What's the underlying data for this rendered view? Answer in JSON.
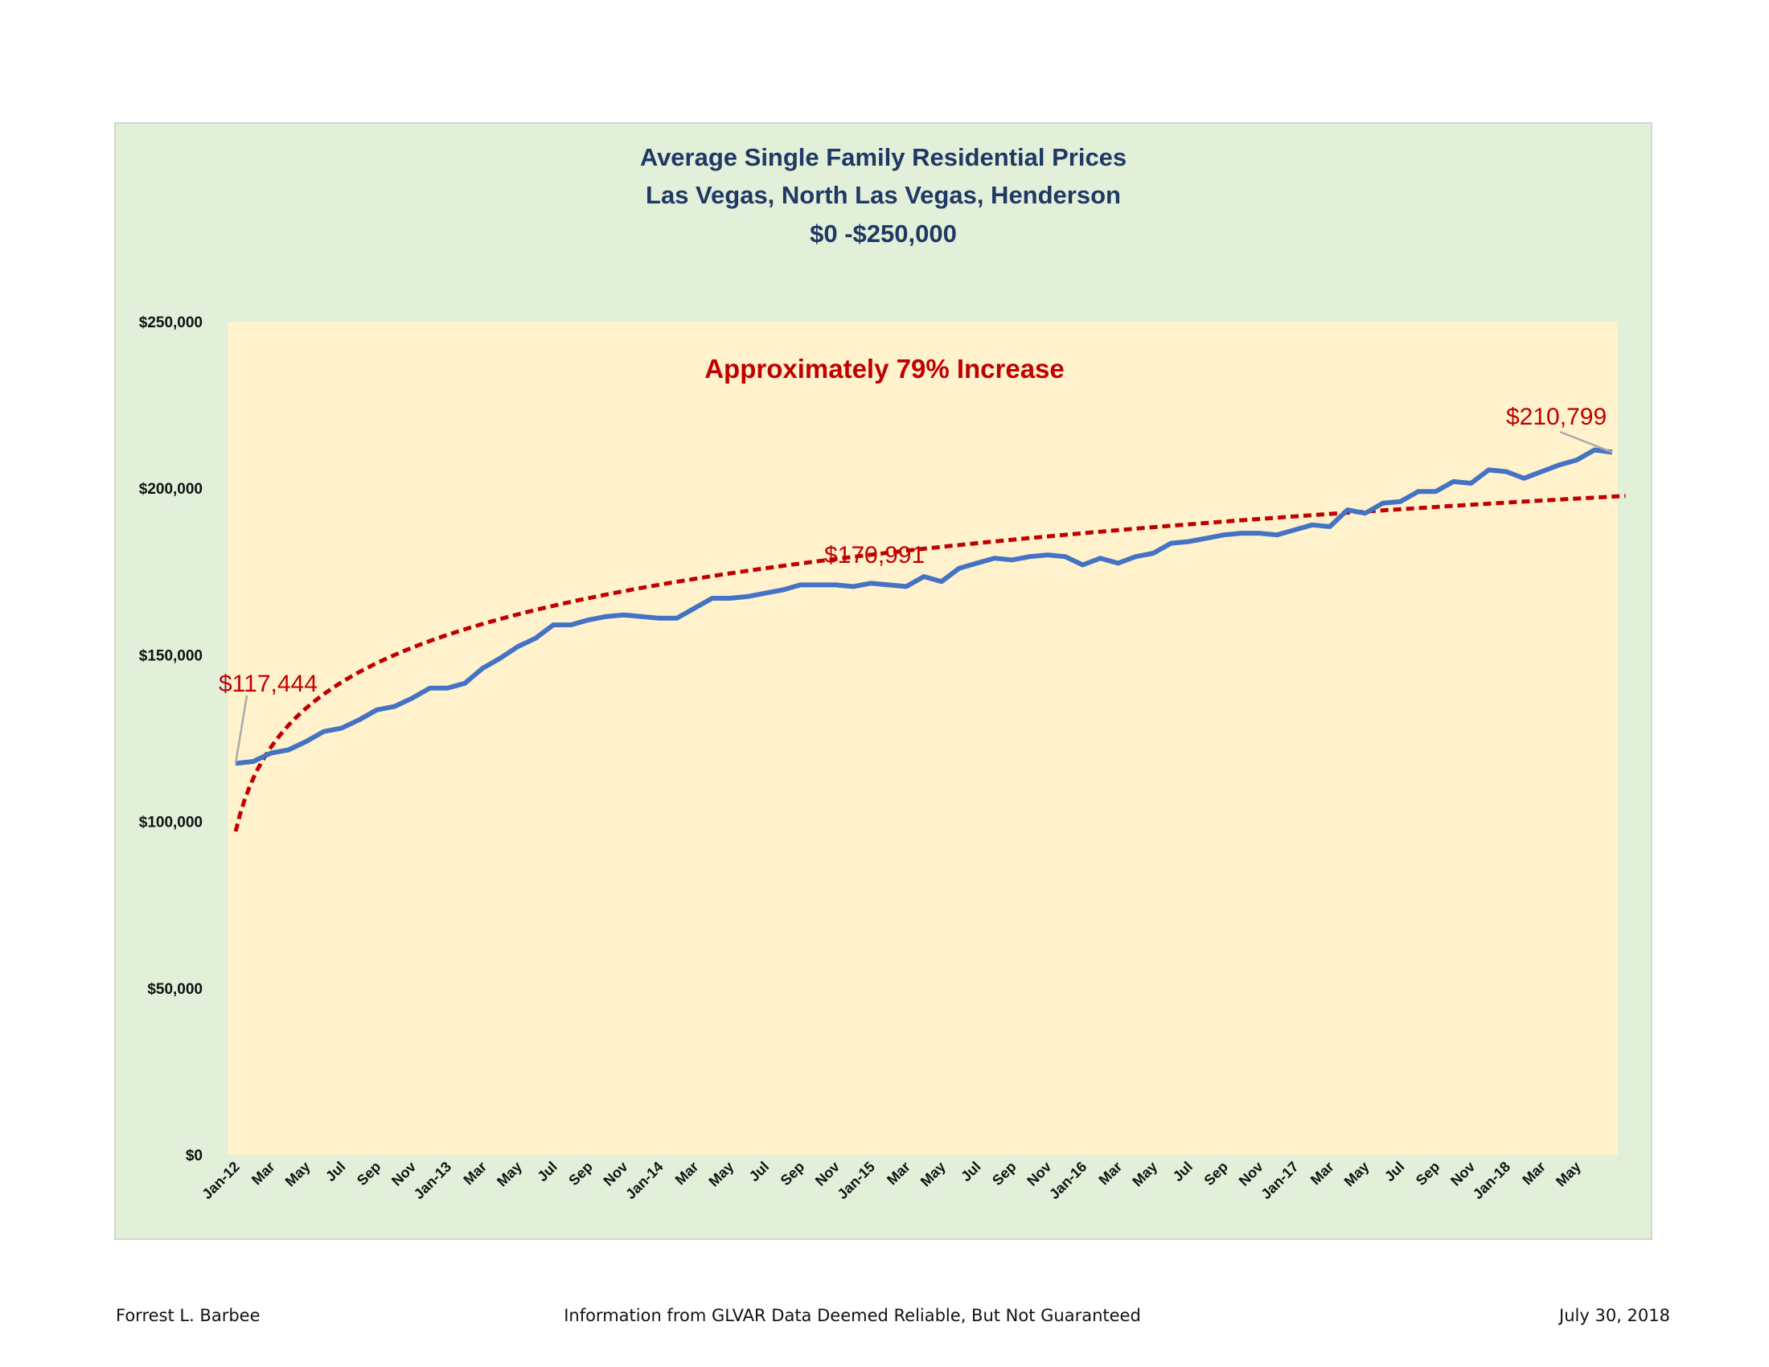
{
  "chart_data": {
    "type": "line",
    "title": [
      "Average Single Family Residential Prices",
      "Las Vegas, North Las Vegas, Henderson",
      "$0 -$250,000"
    ],
    "xlabel": "",
    "ylabel": "",
    "ylim": [
      0,
      250000
    ],
    "yticks": [
      0,
      50000,
      100000,
      150000,
      200000,
      250000
    ],
    "ytick_labels": [
      "$0",
      "$50,000",
      "$100,000",
      "$150,000",
      "$200,000",
      "$250,000"
    ],
    "xtick_labels": [
      "Jan-12",
      "Mar",
      "May",
      "Jul",
      "Sep",
      "Nov",
      "Jan-13",
      "Mar",
      "May",
      "Jul",
      "Sep",
      "Nov",
      "Jan-14",
      "Mar",
      "May",
      "Jul",
      "Sep",
      "Nov",
      "Jan-15",
      "Mar",
      "May",
      "Jul",
      "Sep",
      "Nov",
      "Jan-16",
      "Mar",
      "May",
      "Jul",
      "Sep",
      "Nov",
      "Jan-17",
      "Mar",
      "May",
      "Jul",
      "Sep",
      "Nov",
      "Jan-18",
      "Mar",
      "May"
    ],
    "xtick_every_months": 2,
    "grid": false,
    "series": [
      {
        "name": "Average Price",
        "color": "#4472c4",
        "start": "Jan-12",
        "end": "Jul-18",
        "values": [
          117444,
          118000,
          120500,
          121500,
          124000,
          127000,
          128000,
          130500,
          133500,
          134500,
          137000,
          140000,
          140000,
          141500,
          146000,
          149000,
          152500,
          155000,
          159000,
          159000,
          160500,
          161500,
          162000,
          161500,
          161000,
          161000,
          164000,
          167000,
          167000,
          167500,
          168500,
          169500,
          170991,
          171000,
          171000,
          170500,
          171500,
          171000,
          170500,
          173500,
          172000,
          176000,
          177500,
          179000,
          178500,
          179500,
          180000,
          179500,
          177000,
          179000,
          177500,
          179500,
          180500,
          183500,
          184000,
          185000,
          186000,
          186500,
          186500,
          186000,
          187500,
          189000,
          188500,
          193500,
          192500,
          195500,
          196000,
          199000,
          199000,
          202000,
          201500,
          205500,
          205000,
          203000,
          205000,
          207000,
          208500,
          211500,
          210799
        ]
      },
      {
        "name": "Logarithmic Trendline",
        "color": "#c00000",
        "type": "log-trend",
        "a": 97000,
        "b": 23000
      }
    ],
    "annotations": [
      {
        "text": "Approximately 79% Increase"
      },
      {
        "text": "$117,444",
        "index": 0
      },
      {
        "text": "$170,991",
        "index": 32
      },
      {
        "text": "$210,799",
        "index": 78
      }
    ]
  },
  "footer": {
    "author": "Forrest L. Barbee",
    "source": "Information  from GLVAR Data Deemed Reliable, But Not Guaranteed",
    "date": "July 30, 2018"
  }
}
